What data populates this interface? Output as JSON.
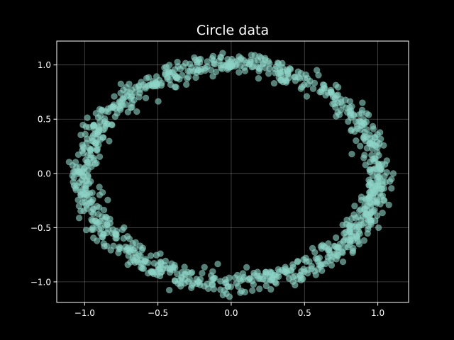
{
  "chart_data": {
    "type": "scatter",
    "title": "Circle data",
    "xlabel": "",
    "ylabel": "",
    "xlim": [
      -1.19,
      1.21
    ],
    "ylim": [
      -1.19,
      1.22
    ],
    "xticks": [
      -1.0,
      -0.5,
      0.0,
      0.5,
      1.0
    ],
    "xtick_labels": [
      "−1.0",
      "−0.5",
      "0.0",
      "0.5",
      "1.0"
    ],
    "yticks": [
      -1.0,
      -0.5,
      0.0,
      0.5,
      1.0
    ],
    "ytick_labels": [
      "−1.0",
      "−0.5",
      "0.0",
      "0.5",
      "1.0"
    ],
    "grid": true,
    "background": "#000000",
    "axis_color": "#ffffff",
    "marker_color": "#8dd3c7",
    "marker_alpha": 0.6,
    "n_points": 1000,
    "radius": 1.0,
    "noise_sd": 0.05,
    "series": [
      {
        "x": [
          1.0,
          0.995,
          0.981,
          0.958,
          0.926,
          0.886,
          0.838,
          0.782,
          0.719,
          0.649,
          0.574,
          0.493,
          0.407,
          0.318,
          0.225,
          0.13,
          0.034,
          -0.063,
          -0.159,
          -0.253,
          -0.345,
          -0.434,
          -0.519,
          -0.599,
          -0.674,
          -0.742,
          -0.803,
          -0.857,
          -0.902,
          -0.94,
          -0.968,
          -0.988,
          -0.998,
          -0.999,
          -0.991,
          -0.974,
          -0.948,
          -0.913,
          -0.87,
          -0.819,
          -0.76,
          -0.695,
          -0.623,
          -0.546,
          -0.463,
          -0.376,
          -0.286,
          -0.192,
          -0.097,
          -0.0,
          0.097,
          0.192,
          0.286,
          0.376,
          0.463,
          0.546,
          0.623,
          0.695,
          0.76,
          0.819,
          0.87,
          0.913,
          0.948,
          0.974,
          0.991,
          0.999,
          0.998,
          0.988,
          0.968,
          0.94,
          0.902,
          0.857,
          0.803,
          0.742,
          0.674,
          0.599,
          0.519,
          0.434,
          0.345,
          0.253,
          0.159,
          0.063,
          -0.034,
          -0.13,
          -0.225,
          -0.318,
          -0.407,
          -0.493,
          -0.574,
          -0.649,
          -0.719,
          -0.782,
          -0.838,
          -0.886,
          -0.926,
          -0.958,
          -0.981,
          -0.995
        ],
        "y": [
          0.0,
          0.097,
          0.192,
          0.286,
          0.376,
          0.463,
          0.546,
          0.623,
          0.695,
          0.76,
          0.819,
          0.87,
          0.913,
          0.948,
          0.974,
          0.991,
          0.999,
          0.998,
          0.988,
          0.968,
          0.94,
          0.902,
          0.857,
          0.803,
          0.742,
          0.674,
          0.599,
          0.519,
          0.434,
          0.345,
          0.253,
          0.159,
          0.063,
          -0.034,
          -0.13,
          -0.225,
          -0.318,
          -0.407,
          -0.493,
          -0.574,
          -0.649,
          -0.719,
          -0.782,
          -0.838,
          -0.886,
          -0.926,
          -0.958,
          -0.981,
          -0.995,
          -1.0,
          -0.995,
          -0.981,
          -0.958,
          -0.926,
          -0.886,
          -0.838,
          -0.782,
          -0.719,
          -0.649,
          -0.574,
          -0.493,
          -0.407,
          -0.318,
          -0.225,
          -0.13,
          -0.034,
          0.063,
          0.159,
          0.253,
          0.345,
          0.434,
          0.519,
          0.599,
          0.674,
          0.742,
          0.803,
          0.857,
          0.902,
          0.94,
          0.968,
          0.988,
          0.998,
          0.999,
          0.991,
          0.974,
          0.948,
          0.913,
          0.87,
          0.819,
          0.76,
          0.695,
          0.623,
          0.546,
          0.463,
          0.376,
          0.286,
          0.192,
          0.097
        ]
      }
    ]
  }
}
